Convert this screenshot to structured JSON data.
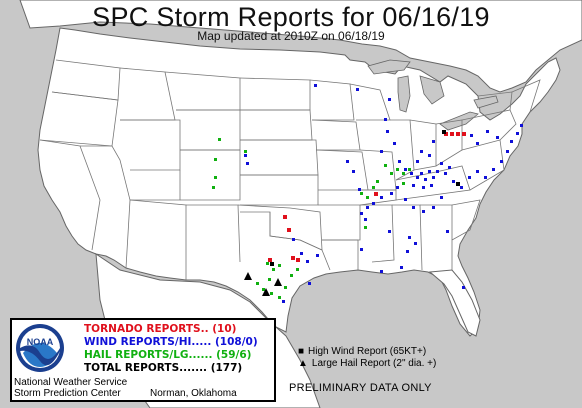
{
  "title": "SPC Storm Reports for 06/16/19",
  "subtitle": "Map updated at 2010Z on 06/18/19",
  "legend": {
    "tornado": "TORNADO REPORTS.. (10)",
    "wind": "WIND REPORTS/HI..... (108/0)",
    "hail": "HAIL REPORTS/LG...... (59/6)",
    "total": "TOTAL REPORTS....... (177)",
    "logo_text": "NOAA"
  },
  "footer": {
    "org1": "National Weather Service",
    "org2": "Storm Prediction Center",
    "place": "Norman, Oklahoma"
  },
  "key": {
    "high_wind": "High Wind Report (65KT+)",
    "large_hail": "Large Hail Report (2\" dia. +)"
  },
  "notice": "PRELIMINARY DATA ONLY",
  "colors": {
    "land": "#ffffff",
    "water": "#c8c8c8",
    "tornado": "#e0101c",
    "wind": "#1010d8",
    "hail": "#10b010",
    "significant": "#000000"
  }
}
